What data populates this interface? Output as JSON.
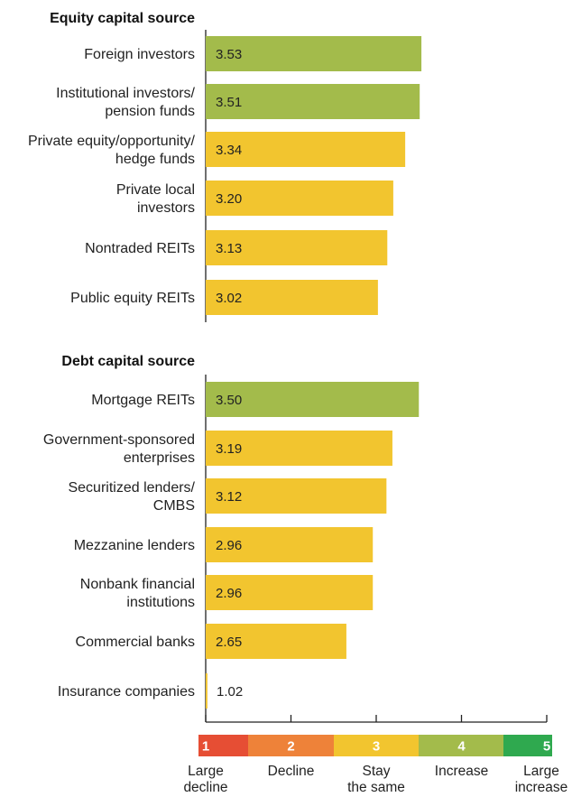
{
  "chart_data": {
    "type": "bar",
    "orientation": "horizontal",
    "xlim": [
      1,
      5
    ],
    "sections": [
      {
        "title": "Equity capital source",
        "bars": [
          {
            "label": [
              "Foreign investors"
            ],
            "value": 3.53,
            "value_label": "3.53",
            "color": "#a3bb4b"
          },
          {
            "label": [
              "Institutional investors/",
              "pension funds"
            ],
            "value": 3.51,
            "value_label": "3.51",
            "color": "#a3bb4b"
          },
          {
            "label": [
              "Private equity/opportunity/",
              "hedge funds"
            ],
            "value": 3.34,
            "value_label": "3.34",
            "color": "#f2c52f"
          },
          {
            "label": [
              "Private local",
              "investors"
            ],
            "value": 3.2,
            "value_label": "3.20",
            "color": "#f2c52f"
          },
          {
            "label": [
              "Nontraded REITs"
            ],
            "value": 3.13,
            "value_label": "3.13",
            "color": "#f2c52f"
          },
          {
            "label": [
              "Public equity REITs"
            ],
            "value": 3.02,
            "value_label": "3.02",
            "color": "#f2c52f"
          }
        ]
      },
      {
        "title": "Debt capital source",
        "bars": [
          {
            "label": [
              "Mortgage REITs"
            ],
            "value": 3.5,
            "value_label": "3.50",
            "color": "#a3bb4b"
          },
          {
            "label": [
              "Government-sponsored",
              "enterprises"
            ],
            "value": 3.19,
            "value_label": "3.19",
            "color": "#f2c52f"
          },
          {
            "label": [
              "Securitized lenders/",
              "CMBS"
            ],
            "value": 3.12,
            "value_label": "3.12",
            "color": "#f2c52f"
          },
          {
            "label": [
              "Mezzanine lenders"
            ],
            "value": 2.96,
            "value_label": "2.96",
            "color": "#f2c52f"
          },
          {
            "label": [
              "Nonbank financial",
              "institutions"
            ],
            "value": 2.96,
            "value_label": "2.96",
            "color": "#f2c52f"
          },
          {
            "label": [
              "Commercial banks"
            ],
            "value": 2.65,
            "value_label": "2.65",
            "color": "#f2c52f"
          },
          {
            "label": [
              "Insurance companies"
            ],
            "value": 1.02,
            "value_label": "1.02",
            "color": "#f2c52f"
          }
        ]
      }
    ],
    "scale": [
      {
        "number": "1",
        "label": [
          "Large",
          "decline"
        ],
        "color": "#e64e34"
      },
      {
        "number": "2",
        "label": [
          "Decline"
        ],
        "color": "#ee8239"
      },
      {
        "number": "3",
        "label": [
          "Stay",
          "the same"
        ],
        "color": "#f2c52f"
      },
      {
        "number": "4",
        "label": [
          "Increase"
        ],
        "color": "#a3bb4b"
      },
      {
        "number": "5",
        "label": [
          "Large",
          "increase"
        ],
        "color": "#2fa94f"
      }
    ]
  }
}
